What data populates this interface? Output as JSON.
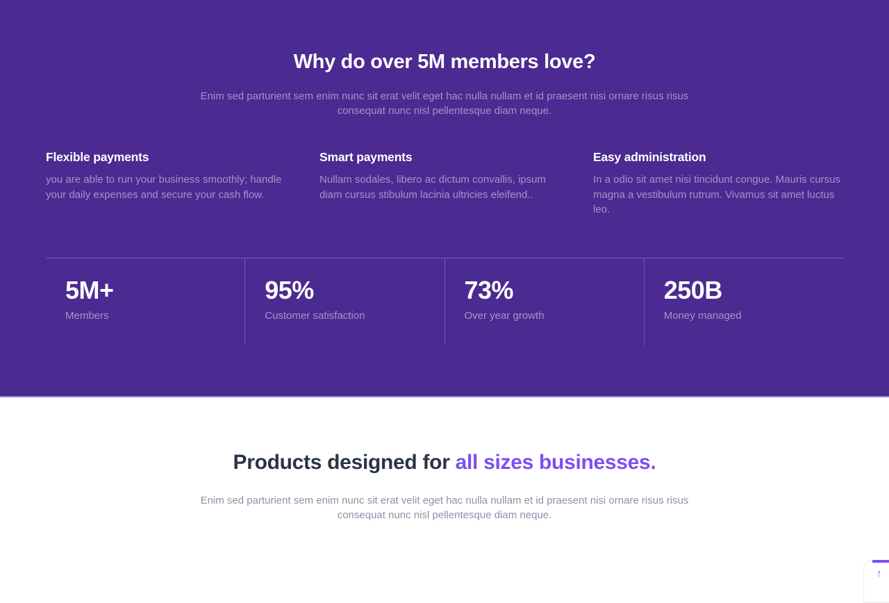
{
  "theme": {
    "hero_background": "#4b2a91",
    "divider_color": "#7a4fdd",
    "accent_color": "#7c4ef3",
    "heading_dark": "#2b3445",
    "muted_on_purple": "#a294ca",
    "muted_gray": "#8a92a6"
  },
  "hero": {
    "title": "Why do over 5M members love?",
    "subtitle_lines": [
      "Enim sed parturient sem enim nunc sit erat velit eget hac nulla nullam et id praesent nisi ornare risus risus",
      "consequat nunc nisl pellentesque diam neque."
    ],
    "features": [
      {
        "title": "Flexible payments",
        "body": "you are able to run your business smoothly; handle your daily expenses and secure your cash flow."
      },
      {
        "title": "Smart payments",
        "body": "Nullam sodales, libero ac dictum convallis, ipsum diam cursus stibulum lacinia ultricies eleifend.."
      },
      {
        "title": "Easy administration",
        "body": "In a odio sit amet nisi tincidunt congue. Mauris cursus magna a vestibulum rutrum. Vivamus sit amet luctus leo."
      }
    ],
    "stats": [
      {
        "value": "5M+",
        "label": "Members"
      },
      {
        "value": "95%",
        "label": "Customer satisfaction"
      },
      {
        "value": "73%",
        "label": "Over year growth"
      },
      {
        "value": "250B",
        "label": "Money managed"
      }
    ]
  },
  "products": {
    "title_prefix": "Products designed for ",
    "title_accent": "all sizes businesses.",
    "subtitle_lines": [
      "Enim sed parturient sem enim nunc sit erat velit eget hac nulla nullam et id praesent nisi ornare risus risus",
      "consequat nunc nisl pellentesque diam neque."
    ]
  },
  "scroll_top": {
    "arrow_icon": "↑"
  }
}
